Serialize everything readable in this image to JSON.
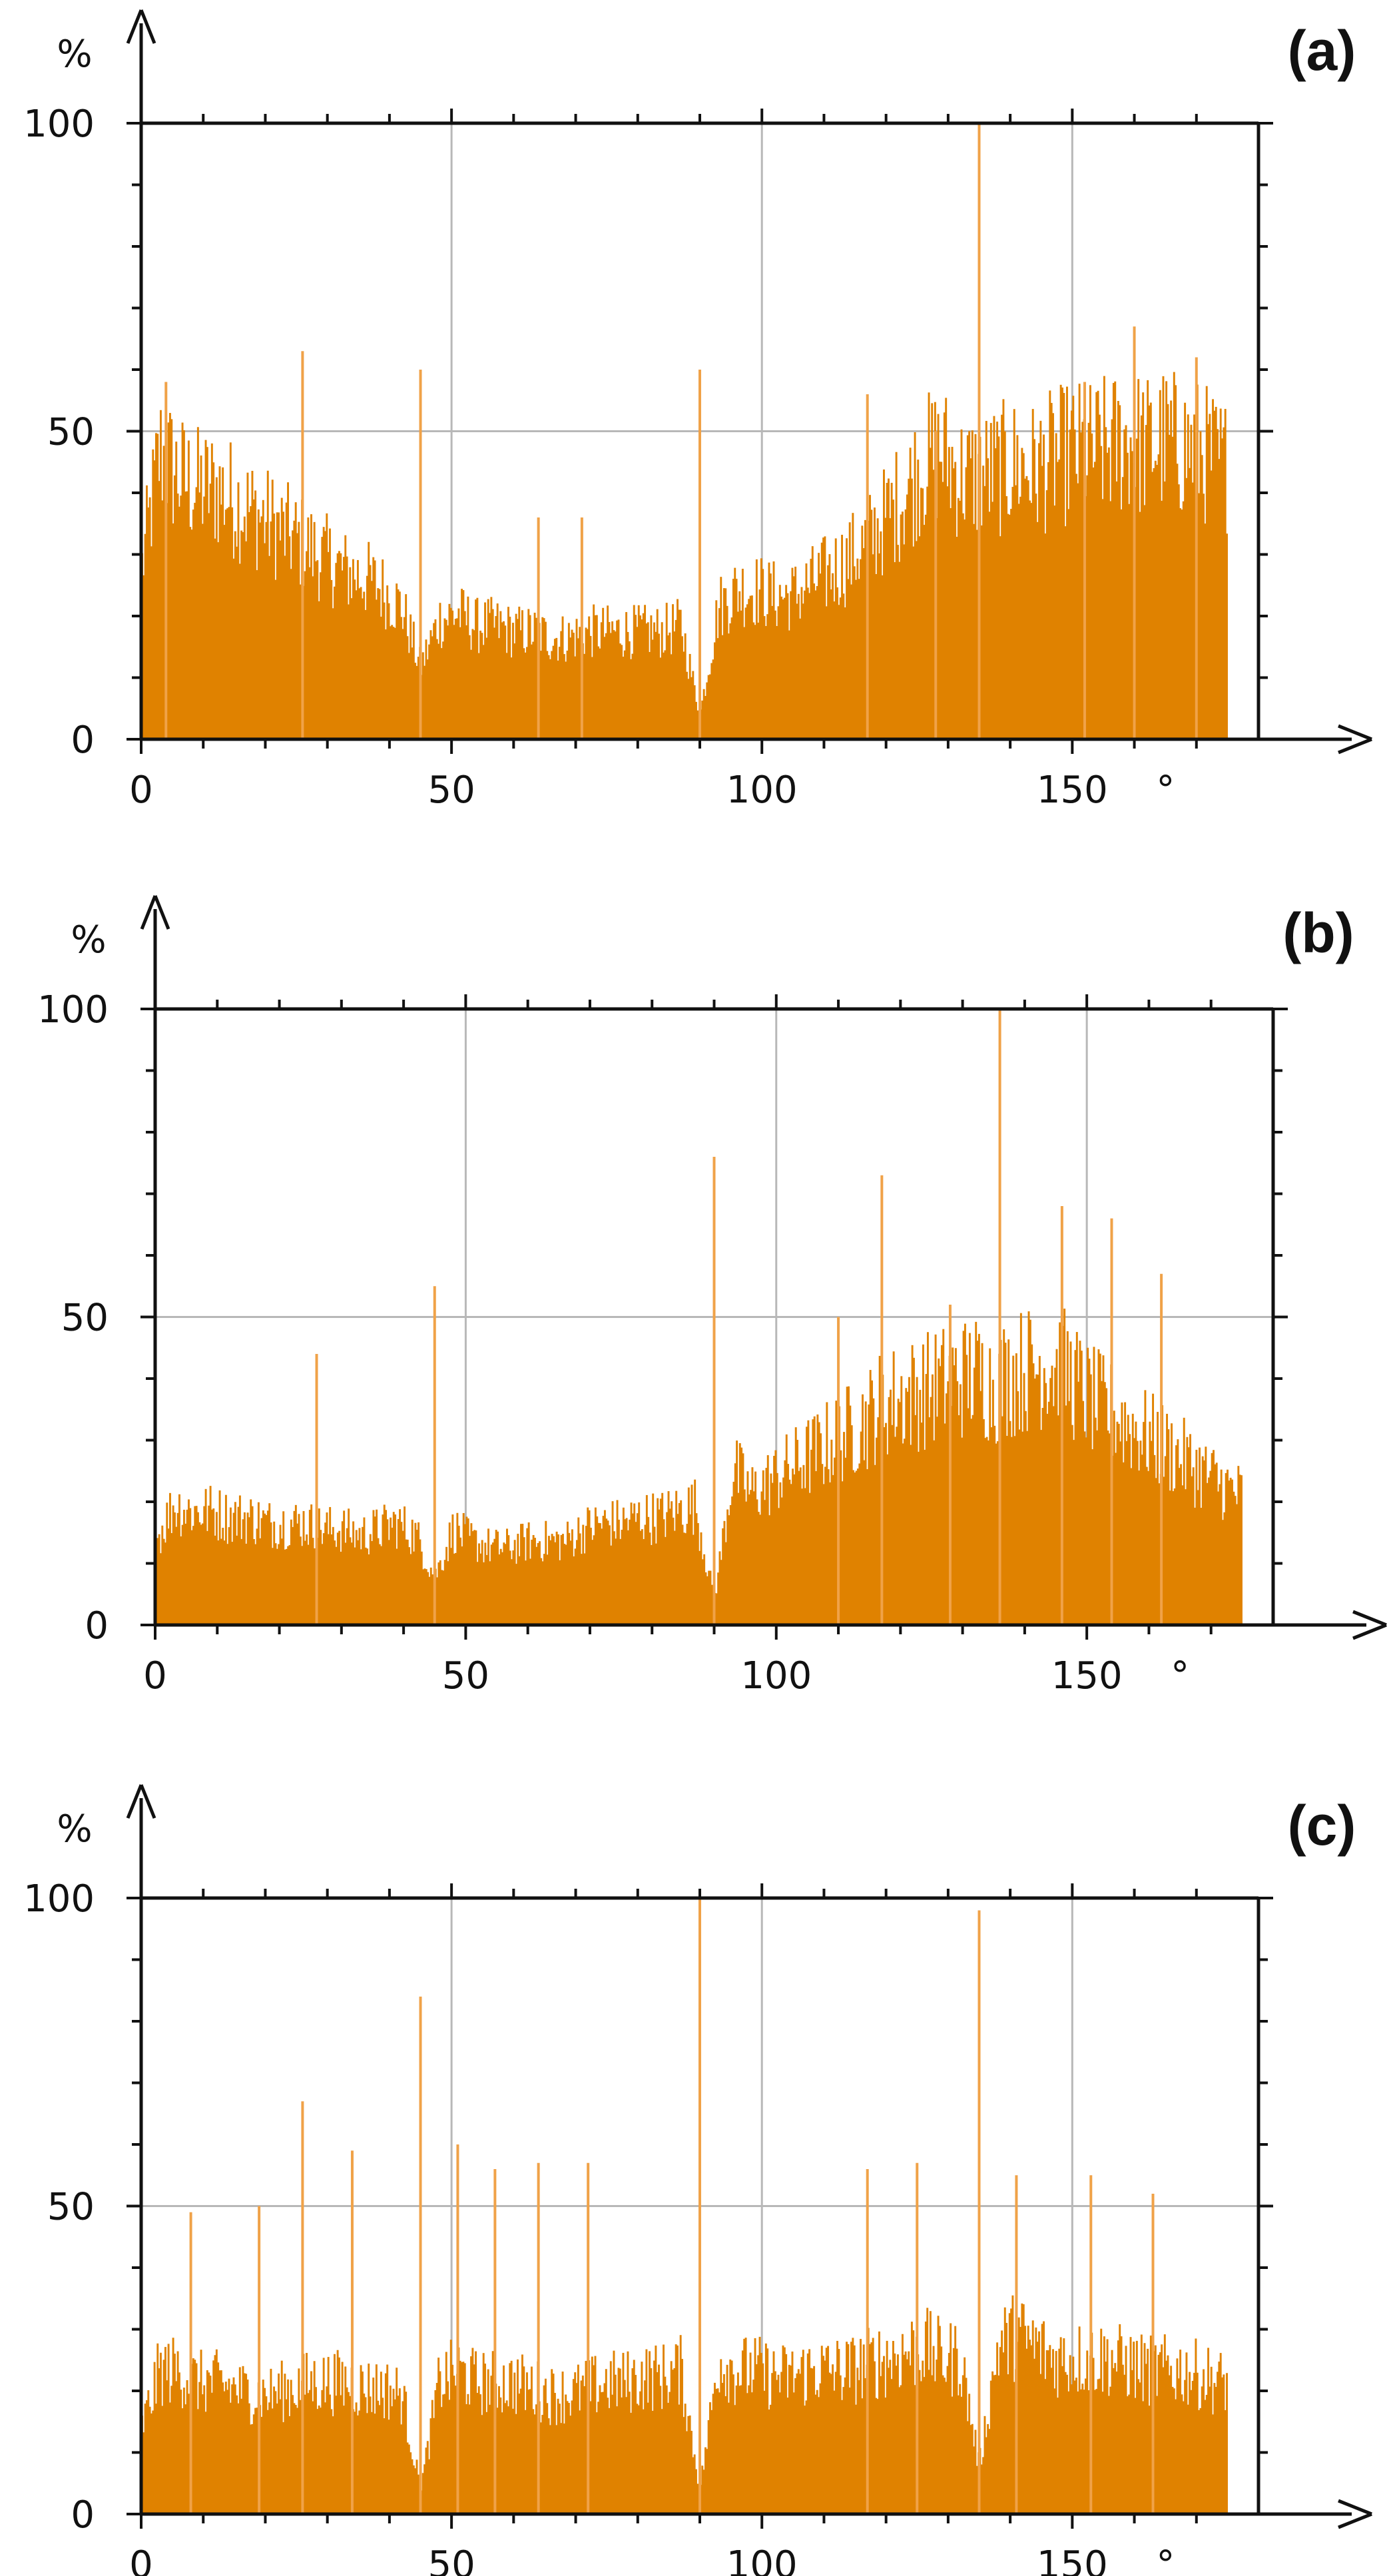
{
  "colors": {
    "bar_fill": "#e08200",
    "bar_spike": "#f0a248",
    "grid": "#b8b8b8",
    "axis": "#111111",
    "background": "#ffffff"
  },
  "chart_data": [
    {
      "type": "bar",
      "panel_label": "(a)",
      "xlabel": "°",
      "ylabel": "%",
      "xlim": [
        0,
        180
      ],
      "ylim": [
        0,
        100
      ],
      "xticks": [
        0,
        50,
        100,
        150
      ],
      "yticks": [
        0,
        50,
        100
      ],
      "grid": true,
      "x": [
        0,
        3,
        6,
        9,
        12,
        15,
        18,
        21,
        24,
        27,
        30,
        33,
        36,
        39,
        42,
        45,
        48,
        51,
        54,
        57,
        60,
        63,
        66,
        69,
        72,
        75,
        78,
        81,
        84,
        87,
        90,
        93,
        96,
        99,
        102,
        105,
        108,
        111,
        114,
        117,
        120,
        123,
        126,
        129,
        132,
        135,
        138,
        141,
        144,
        147,
        150,
        153,
        156,
        159,
        162,
        165,
        168,
        171,
        174
      ],
      "values": [
        28,
        48,
        44,
        42,
        42,
        40,
        38,
        36,
        34,
        32,
        30,
        28,
        27,
        25,
        22,
        12,
        20,
        21,
        19,
        19,
        18,
        18,
        17,
        17,
        18,
        18,
        18,
        18,
        18,
        19,
        4,
        22,
        25,
        25,
        24,
        24,
        26,
        28,
        30,
        33,
        37,
        41,
        46,
        48,
        44,
        44,
        45,
        46,
        45,
        47,
        48,
        48,
        49,
        50,
        49,
        50,
        49,
        48,
        46
      ],
      "spikes": [
        {
          "x": 4,
          "value": 58
        },
        {
          "x": 26,
          "value": 63
        },
        {
          "x": 45,
          "value": 60
        },
        {
          "x": 64,
          "value": 36
        },
        {
          "x": 71,
          "value": 36
        },
        {
          "x": 90,
          "value": 60
        },
        {
          "x": 117,
          "value": 56
        },
        {
          "x": 128,
          "value": 50
        },
        {
          "x": 135,
          "value": 100
        },
        {
          "x": 152,
          "value": 58
        },
        {
          "x": 160,
          "value": 67
        },
        {
          "x": 170,
          "value": 62
        }
      ]
    },
    {
      "type": "bar",
      "panel_label": "(b)",
      "xlabel": "°",
      "ylabel": "%",
      "xlim": [
        0,
        180
      ],
      "ylim": [
        0,
        100
      ],
      "xticks": [
        0,
        50,
        100,
        150
      ],
      "yticks": [
        0,
        50,
        100
      ],
      "grid": true,
      "x": [
        0,
        3,
        6,
        9,
        12,
        15,
        18,
        21,
        24,
        27,
        30,
        33,
        36,
        39,
        42,
        45,
        48,
        51,
        54,
        57,
        60,
        63,
        66,
        69,
        72,
        75,
        78,
        81,
        84,
        87,
        90,
        93,
        96,
        99,
        102,
        105,
        108,
        111,
        114,
        117,
        120,
        123,
        126,
        129,
        132,
        135,
        138,
        141,
        144,
        147,
        150,
        153,
        156,
        159,
        162,
        165,
        168,
        171,
        174
      ],
      "values": [
        14,
        20,
        19,
        19,
        18,
        18,
        17,
        17,
        17,
        16,
        16,
        15,
        16,
        17,
        15,
        8,
        16,
        14,
        13,
        13,
        14,
        14,
        14,
        16,
        17,
        17,
        18,
        18,
        19,
        20,
        4,
        26,
        22,
        24,
        26,
        28,
        30,
        32,
        34,
        37,
        38,
        39,
        40,
        41,
        42,
        40,
        42,
        43,
        44,
        42,
        38,
        36,
        34,
        32,
        30,
        28,
        26,
        24,
        22
      ],
      "spikes": [
        {
          "x": 26,
          "value": 44
        },
        {
          "x": 45,
          "value": 55
        },
        {
          "x": 90,
          "value": 76
        },
        {
          "x": 110,
          "value": 50
        },
        {
          "x": 117,
          "value": 73
        },
        {
          "x": 128,
          "value": 52
        },
        {
          "x": 136,
          "value": 100
        },
        {
          "x": 146,
          "value": 68
        },
        {
          "x": 154,
          "value": 66
        },
        {
          "x": 162,
          "value": 57
        }
      ]
    },
    {
      "type": "bar",
      "panel_label": "(c)",
      "xlabel": "°",
      "ylabel": "%",
      "xlim": [
        0,
        180
      ],
      "ylim": [
        0,
        100
      ],
      "xticks": [
        0,
        50,
        100,
        150
      ],
      "yticks": [
        0,
        50,
        100
      ],
      "grid": true,
      "x": [
        0,
        3,
        6,
        9,
        12,
        15,
        18,
        21,
        24,
        27,
        30,
        33,
        36,
        39,
        42,
        45,
        48,
        51,
        54,
        57,
        60,
        63,
        66,
        69,
        72,
        75,
        78,
        81,
        84,
        87,
        90,
        93,
        96,
        99,
        102,
        105,
        108,
        111,
        114,
        117,
        120,
        123,
        126,
        129,
        132,
        135,
        138,
        141,
        144,
        147,
        150,
        153,
        156,
        159,
        162,
        165,
        168,
        171,
        174
      ],
      "values": [
        14,
        24,
        24,
        22,
        22,
        21,
        20,
        20,
        21,
        22,
        22,
        22,
        21,
        21,
        20,
        4,
        22,
        24,
        22,
        22,
        22,
        21,
        20,
        20,
        21,
        22,
        22,
        23,
        23,
        24,
        4,
        26,
        24,
        24,
        23,
        23,
        24,
        24,
        24,
        25,
        26,
        27,
        28,
        26,
        26,
        8,
        28,
        30,
        28,
        26,
        26,
        26,
        26,
        25,
        24,
        24,
        24,
        23,
        22
      ],
      "spikes": [
        {
          "x": 8,
          "value": 49
        },
        {
          "x": 19,
          "value": 50
        },
        {
          "x": 26,
          "value": 67
        },
        {
          "x": 34,
          "value": 59
        },
        {
          "x": 45,
          "value": 84
        },
        {
          "x": 51,
          "value": 60
        },
        {
          "x": 57,
          "value": 56
        },
        {
          "x": 64,
          "value": 57
        },
        {
          "x": 72,
          "value": 57
        },
        {
          "x": 90,
          "value": 100
        },
        {
          "x": 117,
          "value": 56
        },
        {
          "x": 125,
          "value": 57
        },
        {
          "x": 135,
          "value": 98
        },
        {
          "x": 141,
          "value": 55
        },
        {
          "x": 153,
          "value": 55
        },
        {
          "x": 163,
          "value": 52
        }
      ]
    }
  ]
}
